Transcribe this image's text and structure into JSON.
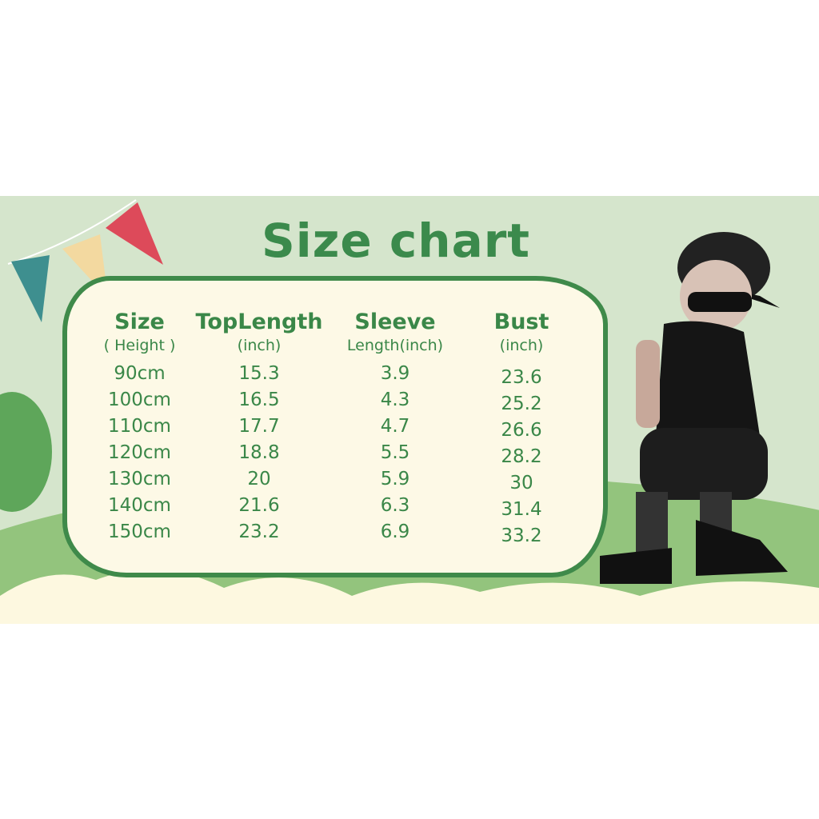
{
  "title": "Size chart",
  "colors": {
    "banner": "#d5e5cc",
    "text": "#3a8748",
    "panel": "#fdf9e6",
    "border": "#3f8a4a"
  },
  "columns": [
    {
      "header": "Size",
      "sub": "( Height )",
      "values": [
        "90cm",
        "100cm",
        "110cm",
        "120cm",
        "130cm",
        "140cm",
        "150cm"
      ]
    },
    {
      "header": "TopLength",
      "sub": "(inch)",
      "values": [
        "15.3",
        "16.5",
        "17.7",
        "18.8",
        "20",
        "21.6",
        "23.2"
      ]
    },
    {
      "header": "Sleeve",
      "sub": "Length(inch)",
      "values": [
        "3.9",
        "4.3",
        "4.7",
        "5.5",
        "5.9",
        "6.3",
        "6.9"
      ]
    },
    {
      "header": "Bust",
      "sub": "(inch)",
      "values": [
        "23.6",
        "25.2",
        "26.6",
        "28.2",
        "30",
        "31.4",
        "33.2"
      ]
    }
  ]
}
